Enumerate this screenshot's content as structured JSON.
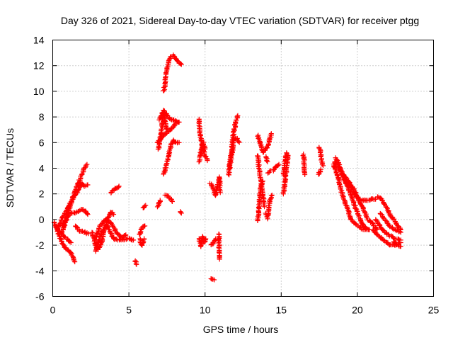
{
  "chart_data": {
    "type": "scatter",
    "title": "Day 326 of 2021, Sidereal Day-to-day VTEC variation (SDTVAR) for receiver ptgg",
    "xlabel": "GPS time / hours",
    "ylabel": "SDTVAR / TECUs",
    "xlim": [
      0,
      25
    ],
    "ylim": [
      -6,
      14
    ],
    "xticks": [
      0,
      5,
      10,
      15,
      20,
      25
    ],
    "yticks": [
      -6,
      -4,
      -2,
      0,
      2,
      4,
      6,
      8,
      10,
      12,
      14
    ],
    "grid": true,
    "marker": "+",
    "color": "#ff0000",
    "series": [
      {
        "name": "SDTVAR",
        "tracks": [
          [
            [
              0.1,
              -0.2
            ],
            [
              0.4,
              -1.2
            ],
            [
              0.8,
              -2.2
            ],
            [
              1.2,
              -2.6
            ],
            [
              1.45,
              -3.3
            ]
          ],
          [
            [
              0.2,
              -0.5
            ],
            [
              0.5,
              -1.0
            ],
            [
              0.9,
              -1.5
            ],
            [
              1.2,
              -1.8
            ]
          ],
          [
            [
              0.3,
              -0.8
            ],
            [
              0.6,
              0.0
            ],
            [
              1.0,
              1.0
            ],
            [
              1.3,
              1.6
            ],
            [
              1.6,
              2.1
            ],
            [
              1.9,
              2.8
            ],
            [
              2.1,
              2.6
            ],
            [
              2.3,
              2.7
            ]
          ],
          [
            [
              0.6,
              -1.1
            ],
            [
              1.0,
              0.5
            ],
            [
              1.4,
              2.0
            ],
            [
              1.8,
              3.2
            ],
            [
              2.1,
              4.0
            ],
            [
              2.25,
              4.3
            ]
          ],
          [
            [
              0.7,
              -0.5
            ],
            [
              1.1,
              0.5
            ],
            [
              1.5,
              0.5
            ],
            [
              1.9,
              0.8
            ],
            [
              2.2,
              0.6
            ],
            [
              2.3,
              0.4
            ]
          ],
          [
            [
              1.5,
              -0.5
            ],
            [
              1.8,
              -0.9
            ],
            [
              2.1,
              -1.0
            ],
            [
              2.35,
              -1.1
            ]
          ],
          [
            [
              2.6,
              -1.0
            ],
            [
              2.8,
              -2.0
            ],
            [
              3.0,
              -2.3
            ],
            [
              3.2,
              -1.8
            ],
            [
              3.4,
              -0.8
            ],
            [
              3.6,
              0.0
            ],
            [
              3.8,
              0.6
            ],
            [
              4.0,
              0.4
            ]
          ],
          [
            [
              2.8,
              -1.5
            ],
            [
              3.1,
              -0.5
            ],
            [
              3.5,
              0.0
            ],
            [
              3.9,
              -0.4
            ],
            [
              4.2,
              -1.0
            ],
            [
              4.5,
              -1.4
            ],
            [
              4.8,
              -1.2
            ]
          ],
          [
            [
              2.8,
              -2.5
            ],
            [
              3.2,
              -1.0
            ],
            [
              3.6,
              -0.5
            ],
            [
              4.0,
              -1.5
            ],
            [
              4.4,
              -1.6
            ],
            [
              5.0,
              -1.5
            ],
            [
              5.3,
              -1.6
            ]
          ],
          [
            [
              3.8,
              2.1
            ],
            [
              4.1,
              2.4
            ],
            [
              4.35,
              2.6
            ]
          ],
          [
            [
              5.4,
              -3.2
            ],
            [
              5.5,
              -3.5
            ]
          ],
          [
            [
              5.7,
              -1.2
            ],
            [
              5.9,
              -0.6
            ],
            [
              6.05,
              -0.5
            ]
          ],
          [
            [
              5.9,
              0.9
            ],
            [
              6.1,
              1.1
            ]
          ],
          [
            [
              5.7,
              -1.5
            ],
            [
              5.85,
              -2.0
            ],
            [
              6.0,
              -1.5
            ]
          ],
          [
            [
              6.9,
              1.0
            ],
            [
              7.05,
              1.5
            ]
          ],
          [
            [
              6.9,
              6.0
            ],
            [
              7.1,
              6.3
            ],
            [
              7.3,
              6.6
            ],
            [
              7.5,
              6.8
            ],
            [
              7.7,
              7.0
            ],
            [
              7.9,
              7.2
            ],
            [
              8.05,
              7.5
            ]
          ],
          [
            [
              7.0,
              7.8
            ],
            [
              7.2,
              8.3
            ],
            [
              7.4,
              8.3
            ],
            [
              7.6,
              8.0
            ],
            [
              7.8,
              7.8
            ],
            [
              8.0,
              7.7
            ],
            [
              8.2,
              7.6
            ],
            [
              8.3,
              7.6
            ]
          ],
          [
            [
              7.3,
              3.5
            ],
            [
              7.5,
              4.5
            ],
            [
              7.7,
              5.5
            ],
            [
              7.9,
              6.2
            ],
            [
              8.1,
              6.0
            ],
            [
              8.3,
              6.0
            ]
          ],
          [
            [
              6.95,
              5.5
            ],
            [
              7.1,
              6.5
            ],
            [
              7.2,
              7.5
            ],
            [
              7.3,
              8.5
            ],
            [
              7.4,
              7.5
            ],
            [
              7.5,
              7.0
            ]
          ],
          [
            [
              7.3,
              10.0
            ],
            [
              7.5,
              11.8
            ],
            [
              7.7,
              12.6
            ],
            [
              7.9,
              12.8
            ],
            [
              8.1,
              12.5
            ],
            [
              8.3,
              12.2
            ],
            [
              8.45,
              12.1
            ]
          ],
          [
            [
              7.4,
              1.9
            ],
            [
              7.6,
              1.8
            ],
            [
              7.85,
              1.4
            ]
          ],
          [
            [
              8.35,
              0.6
            ],
            [
              8.45,
              0.5
            ]
          ],
          [
            [
              9.6,
              7.8
            ],
            [
              9.7,
              6.5
            ],
            [
              9.85,
              5.5
            ],
            [
              10.0,
              5.0
            ],
            [
              10.15,
              4.6
            ]
          ],
          [
            [
              9.6,
              4.5
            ],
            [
              9.75,
              5.5
            ],
            [
              9.9,
              6.0
            ],
            [
              10.0,
              5.5
            ]
          ],
          [
            [
              9.6,
              -1.5
            ],
            [
              9.75,
              -2.1
            ],
            [
              9.85,
              -1.3
            ],
            [
              9.95,
              -1.8
            ],
            [
              10.05,
              -1.5
            ]
          ],
          [
            [
              10.35,
              2.8
            ],
            [
              10.55,
              2.4
            ],
            [
              10.7,
              1.9
            ],
            [
              10.95,
              3.3
            ],
            [
              11.0,
              2.1
            ]
          ],
          [
            [
              10.4,
              -2.0
            ],
            [
              10.55,
              -1.8
            ],
            [
              10.7,
              -1.5
            ]
          ],
          [
            [
              10.4,
              -4.6
            ],
            [
              10.6,
              -4.7
            ]
          ],
          [
            [
              10.9,
              -1.1
            ],
            [
              10.95,
              -3.1
            ]
          ],
          [
            [
              11.55,
              3.5
            ],
            [
              11.7,
              5.0
            ],
            [
              11.85,
              6.5
            ],
            [
              12.0,
              7.5
            ],
            [
              12.15,
              8.1
            ]
          ],
          [
            [
              11.6,
              4.0
            ],
            [
              11.75,
              5.0
            ],
            [
              11.9,
              6.3
            ],
            [
              12.1,
              6.3
            ],
            [
              12.25,
              6.0
            ]
          ],
          [
            [
              13.45,
              6.6
            ],
            [
              13.6,
              6.0
            ],
            [
              13.8,
              5.2
            ],
            [
              14.0,
              5.5
            ],
            [
              14.2,
              6.0
            ],
            [
              14.35,
              6.7
            ]
          ],
          [
            [
              13.45,
              5.0
            ],
            [
              13.6,
              3.5
            ],
            [
              13.8,
              2.0
            ],
            [
              13.9,
              1.0
            ]
          ],
          [
            [
              13.45,
              -0.1
            ],
            [
              13.55,
              1.0
            ],
            [
              13.65,
              2.5
            ],
            [
              13.8,
              3.0
            ]
          ],
          [
            [
              14.0,
              4.9
            ],
            [
              14.1,
              4.5
            ]
          ],
          [
            [
              14.0,
              0.5
            ],
            [
              14.1,
              0.1
            ],
            [
              14.25,
              1.5
            ],
            [
              14.4,
              1.9
            ]
          ],
          [
            [
              14.5,
              3.8
            ],
            [
              14.7,
              4.2
            ],
            [
              14.85,
              4.3
            ]
          ],
          [
            [
              14.1,
              3.6
            ],
            [
              14.3,
              3.8
            ]
          ],
          [
            [
              15.15,
              2.0
            ],
            [
              15.25,
              3.0
            ],
            [
              15.35,
              4.0
            ],
            [
              15.45,
              5.0
            ]
          ],
          [
            [
              15.15,
              3.5
            ],
            [
              15.25,
              4.5
            ],
            [
              15.35,
              5.2
            ]
          ],
          [
            [
              16.45,
              5.1
            ],
            [
              16.5,
              4.7
            ],
            [
              16.55,
              3.5
            ]
          ],
          [
            [
              17.45,
              5.6
            ],
            [
              17.55,
              5.5
            ],
            [
              17.65,
              4.6
            ],
            [
              17.75,
              4.2
            ]
          ],
          [
            [
              17.45,
              3.5
            ],
            [
              17.6,
              3.9
            ]
          ],
          [
            [
              18.4,
              4.3
            ],
            [
              18.6,
              3.8
            ],
            [
              18.8,
              3.0
            ],
            [
              19.0,
              2.0
            ],
            [
              19.3,
              1.0
            ],
            [
              19.6,
              0.0
            ],
            [
              20.0,
              -0.5
            ],
            [
              20.4,
              -0.8
            ],
            [
              20.8,
              -0.8
            ]
          ],
          [
            [
              18.5,
              4.5
            ],
            [
              18.8,
              4.0
            ],
            [
              19.1,
              3.2
            ],
            [
              19.4,
              2.5
            ],
            [
              19.7,
              1.5
            ],
            [
              20.0,
              0.5
            ],
            [
              20.3,
              -0.3
            ],
            [
              20.6,
              -0.7
            ]
          ],
          [
            [
              18.6,
              4.8
            ],
            [
              18.9,
              4.0
            ],
            [
              19.2,
              3.0
            ],
            [
              19.5,
              2.8
            ],
            [
              19.8,
              2.3
            ],
            [
              20.1,
              1.5
            ],
            [
              20.4,
              0.8
            ],
            [
              20.7,
              0.0
            ],
            [
              21.0,
              -0.3
            ],
            [
              21.3,
              -0.8
            ]
          ],
          [
            [
              19.0,
              3.6
            ],
            [
              19.4,
              3.0
            ],
            [
              19.8,
              2.0
            ],
            [
              20.2,
              1.5
            ],
            [
              20.6,
              1.5
            ],
            [
              21.0,
              1.6
            ],
            [
              21.2,
              1.6
            ]
          ],
          [
            [
              21.2,
              0.0
            ],
            [
              21.5,
              -0.5
            ],
            [
              21.8,
              -1.0
            ],
            [
              22.2,
              -1.3
            ],
            [
              22.5,
              -1.5
            ],
            [
              22.85,
              -1.6
            ]
          ],
          [
            [
              21.0,
              -0.8
            ],
            [
              21.4,
              -1.3
            ],
            [
              21.8,
              -1.7
            ],
            [
              22.2,
              -2.0
            ],
            [
              22.5,
              -2.0
            ],
            [
              22.85,
              -1.8
            ]
          ],
          [
            [
              21.3,
              1.8
            ],
            [
              21.6,
              1.6
            ],
            [
              21.9,
              1.0
            ],
            [
              22.2,
              0.3
            ],
            [
              22.5,
              -0.2
            ],
            [
              22.85,
              -0.8
            ]
          ],
          [
            [
              21.5,
              0.5
            ],
            [
              21.8,
              0.0
            ],
            [
              22.1,
              -0.5
            ],
            [
              22.5,
              -0.8
            ],
            [
              22.85,
              -1.0
            ]
          ],
          [
            [
              22.4,
              -1.7
            ],
            [
              22.6,
              -2.0
            ],
            [
              22.85,
              -2.1
            ]
          ]
        ]
      }
    ]
  }
}
